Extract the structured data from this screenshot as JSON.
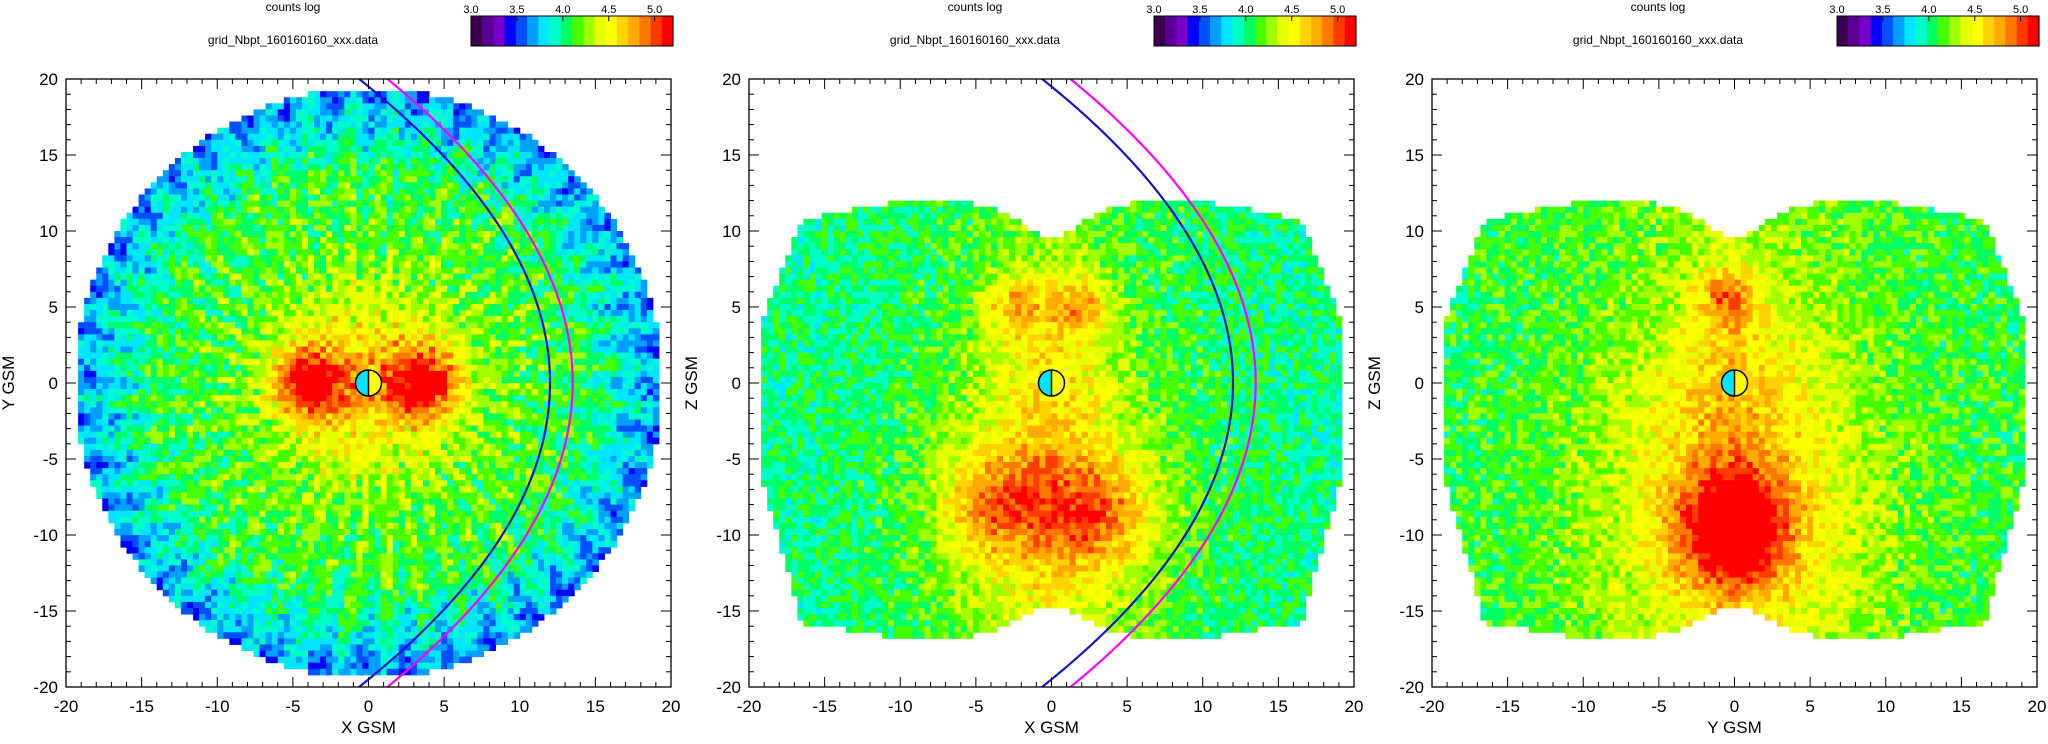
{
  "colorbar": {
    "label": "counts log",
    "ticks": [
      "3.0",
      "3.5",
      "4.0",
      "4.5",
      "5.0"
    ],
    "tick_values": [
      3.0,
      3.5,
      4.0,
      4.5,
      5.0
    ],
    "range": [
      3.0,
      5.2
    ],
    "colors": [
      "#3c0050",
      "#5a0096",
      "#7800c8",
      "#0000ff",
      "#0050ff",
      "#00a0ff",
      "#00e6ff",
      "#00ffc8",
      "#00ff64",
      "#46ff00",
      "#a0ff00",
      "#e6ff00",
      "#ffff00",
      "#ffd200",
      "#ffaa00",
      "#ff7800",
      "#ff3c00",
      "#ff0000"
    ]
  },
  "markers": {
    "earth_day_color": "#ffff00",
    "earth_night_color": "#00e5ff"
  },
  "curve_colors": {
    "magnetopause": "#1414c8",
    "bow_shock": "#ff00ff"
  },
  "chart_data": [
    {
      "type": "heatmap",
      "title": "grid_Nbpt_160160160_xxx.data",
      "xlabel": "X GSM",
      "ylabel": "Y GSM",
      "xlim": [
        -20,
        20
      ],
      "ylim": [
        -20,
        20
      ],
      "xticks": [
        "-20",
        "-15",
        "-10",
        "-5",
        "0",
        "5",
        "10",
        "15",
        "20"
      ],
      "yticks": [
        "20",
        "15",
        "10",
        "5",
        "0",
        "-5",
        "-10",
        "-15",
        "-20"
      ],
      "value_unit": "log10 counts",
      "footprint": "disk, radius about 19.5",
      "peak_regions": [
        {
          "center": [
            -4,
            0
          ],
          "value": 5.0
        },
        {
          "center": [
            3.5,
            0
          ],
          "value": 5.0
        }
      ],
      "curves": [
        {
          "kind": "magnetopause",
          "nose_x": 12,
          "half_width_at_earth": 19.5,
          "color_key": "magnetopause"
        },
        {
          "kind": "bow_shock",
          "nose_x": 13.5,
          "half_width_at_earth": 21,
          "color_key": "bow_shock"
        }
      ]
    },
    {
      "type": "heatmap",
      "title": "grid_Nbpt_160160160_xxx.data",
      "xlabel": "X GSM",
      "ylabel": "Z GSM",
      "xlim": [
        -20,
        20
      ],
      "ylim": [
        -20,
        20
      ],
      "xticks": [
        "-20",
        "-15",
        "-10",
        "-5",
        "0",
        "5",
        "10",
        "15",
        "20"
      ],
      "yticks": [
        "20",
        "15",
        "10",
        "5",
        "0",
        "-5",
        "-10",
        "-15",
        "-20"
      ],
      "value_unit": "log10 counts",
      "footprint": "double-lobe, z from about -17 to 12",
      "peak_regions": [
        {
          "center": [
            -3.5,
            -8
          ],
          "value": 4.8
        },
        {
          "center": [
            3,
            -8.5
          ],
          "value": 4.8
        },
        {
          "center": [
            -2.5,
            5
          ],
          "value": 4.6
        },
        {
          "center": [
            2,
            5
          ],
          "value": 4.6
        }
      ],
      "curves": [
        {
          "kind": "magnetopause",
          "nose_x": 12,
          "half_width_at_earth": 19.5,
          "color_key": "magnetopause"
        },
        {
          "kind": "bow_shock",
          "nose_x": 13.5,
          "half_width_at_earth": 21,
          "color_key": "bow_shock"
        }
      ]
    },
    {
      "type": "heatmap",
      "title": "grid_Nbpt_160160160_xxx.data",
      "xlabel": "Y GSM",
      "ylabel": "Z GSM",
      "xlim": [
        -20,
        20
      ],
      "ylim": [
        -20,
        20
      ],
      "xticks": [
        "-20",
        "-15",
        "-10",
        "-5",
        "0",
        "5",
        "10",
        "15",
        "20"
      ],
      "yticks": [
        "20",
        "15",
        "10",
        "5",
        "0",
        "-5",
        "-10",
        "-15",
        "-20"
      ],
      "value_unit": "log10 counts",
      "footprint": "double-lobe, z from about -17 to 12",
      "peak_regions": [
        {
          "center": [
            0,
            -9.5
          ],
          "value": 5.0
        },
        {
          "center": [
            -0.5,
            5.5
          ],
          "value": 4.6
        }
      ],
      "curves": []
    }
  ]
}
